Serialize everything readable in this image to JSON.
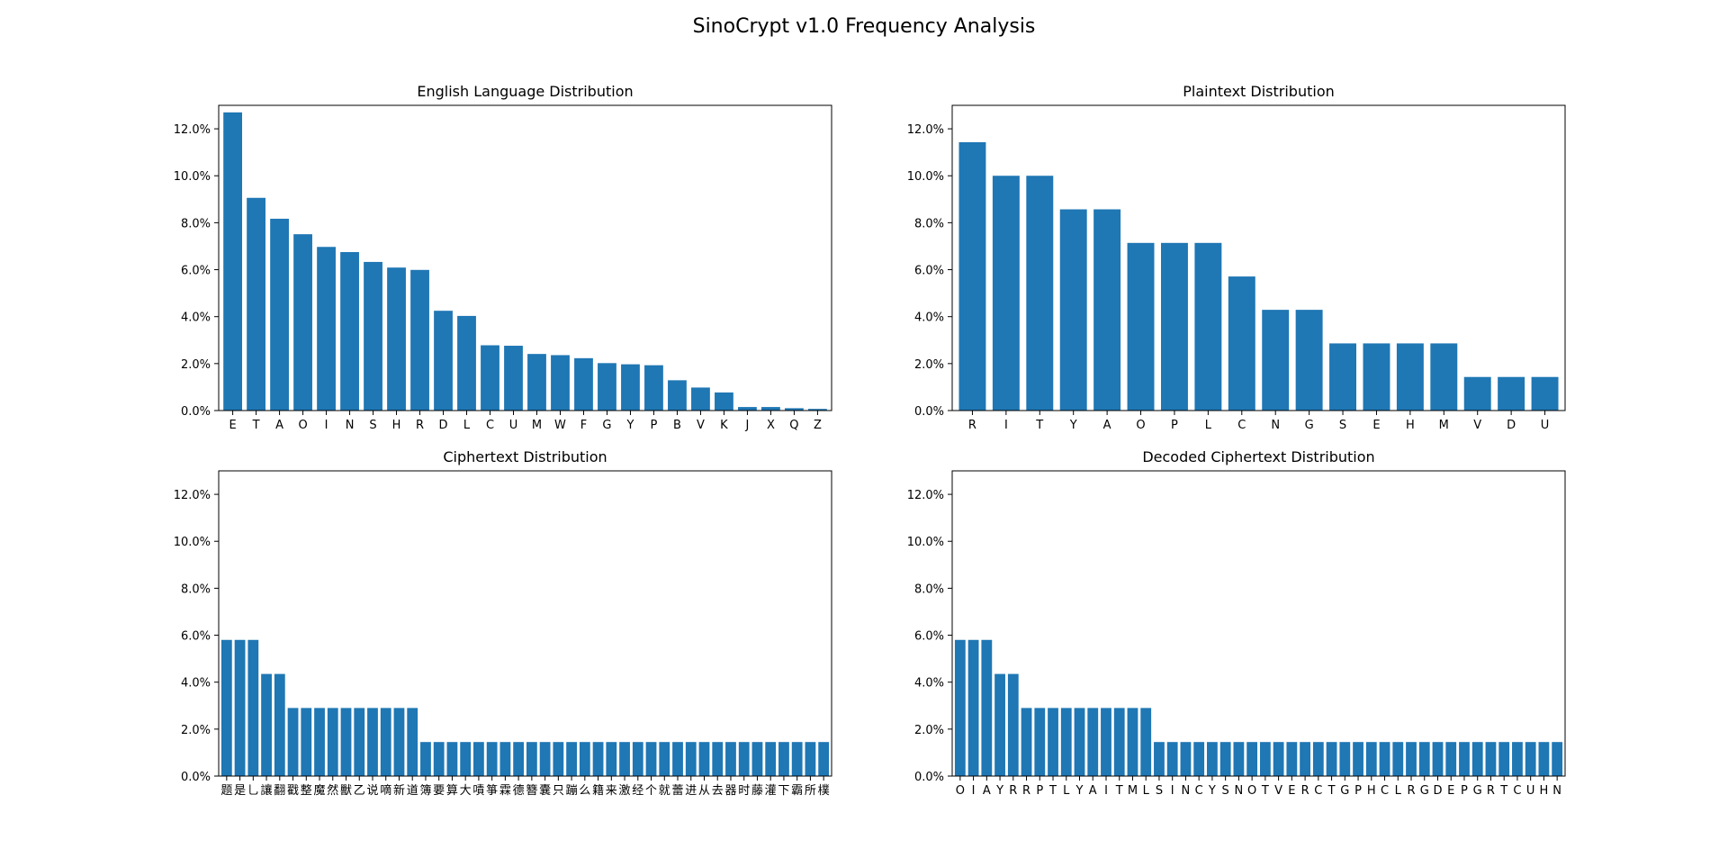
{
  "figure": {
    "title": "SinoCrypt v1.0 Frequency Analysis",
    "bar_color": "#1f77b4"
  },
  "chart_data": [
    {
      "type": "bar",
      "title": "English Language Distribution",
      "xlabel": "",
      "ylabel": "",
      "ylim": [
        0,
        0.13
      ],
      "yticks": [
        "0.0%",
        "2.0%",
        "4.0%",
        "6.0%",
        "8.0%",
        "10.0%",
        "12.0%"
      ],
      "grid": false,
      "categories": [
        "E",
        "T",
        "A",
        "O",
        "I",
        "N",
        "S",
        "H",
        "R",
        "D",
        "L",
        "C",
        "U",
        "M",
        "W",
        "F",
        "G",
        "Y",
        "P",
        "B",
        "V",
        "K",
        "J",
        "X",
        "Q",
        "Z"
      ],
      "values": [
        0.127,
        0.0906,
        0.0817,
        0.0751,
        0.0697,
        0.0675,
        0.0633,
        0.0609,
        0.0599,
        0.0425,
        0.0403,
        0.0278,
        0.0276,
        0.0241,
        0.0236,
        0.0223,
        0.0202,
        0.0197,
        0.0193,
        0.0129,
        0.0098,
        0.0077,
        0.0015,
        0.0015,
        0.001,
        0.0007
      ]
    },
    {
      "type": "bar",
      "title": "Plaintext Distribution",
      "xlabel": "",
      "ylabel": "",
      "ylim": [
        0,
        0.13
      ],
      "yticks": [
        "0.0%",
        "2.0%",
        "4.0%",
        "6.0%",
        "8.0%",
        "10.0%",
        "12.0%"
      ],
      "grid": false,
      "categories": [
        "R",
        "I",
        "T",
        "Y",
        "A",
        "O",
        "P",
        "L",
        "C",
        "N",
        "G",
        "S",
        "E",
        "H",
        "M",
        "V",
        "D",
        "U"
      ],
      "values": [
        0.1143,
        0.1,
        0.1,
        0.0857,
        0.0857,
        0.0714,
        0.0714,
        0.0714,
        0.0571,
        0.0429,
        0.0429,
        0.0286,
        0.0286,
        0.0286,
        0.0286,
        0.0143,
        0.0143,
        0.0143
      ]
    },
    {
      "type": "bar",
      "title": "Ciphertext Distribution",
      "xlabel": "",
      "ylabel": "",
      "ylim": [
        0,
        0.13
      ],
      "yticks": [
        "0.0%",
        "2.0%",
        "4.0%",
        "6.0%",
        "8.0%",
        "10.0%",
        "12.0%"
      ],
      "grid": false,
      "categories": [
        "题",
        "是",
        "乚",
        "讓",
        "翻",
        "戳",
        "整",
        "魔",
        "然",
        "獸",
        "乙",
        "说",
        "嘀",
        "新",
        "道",
        "簿",
        "要",
        "算",
        "大",
        "嘖",
        "箏",
        "霖",
        "德",
        "簪",
        "囊",
        "只",
        "蹦",
        "么",
        "籍",
        "来",
        "激",
        "经",
        "个",
        "就",
        "蕾",
        "进",
        "从",
        "去",
        "器",
        "时",
        "藤",
        "灌",
        "下",
        "霸",
        "所",
        "樸"
      ],
      "values": [
        0.058,
        0.058,
        0.058,
        0.0435,
        0.0435,
        0.029,
        0.029,
        0.029,
        0.029,
        0.029,
        0.029,
        0.029,
        0.029,
        0.029,
        0.029,
        0.0145,
        0.0145,
        0.0145,
        0.0145,
        0.0145,
        0.0145,
        0.0145,
        0.0145,
        0.0145,
        0.0145,
        0.0145,
        0.0145,
        0.0145,
        0.0145,
        0.0145,
        0.0145,
        0.0145,
        0.0145,
        0.0145,
        0.0145,
        0.0145,
        0.0145,
        0.0145,
        0.0145,
        0.0145,
        0.0145,
        0.0145,
        0.0145,
        0.0145,
        0.0145,
        0.0145
      ]
    },
    {
      "type": "bar",
      "title": "Decoded Ciphertext Distribution",
      "xlabel": "",
      "ylabel": "",
      "ylim": [
        0,
        0.13
      ],
      "yticks": [
        "0.0%",
        "2.0%",
        "4.0%",
        "6.0%",
        "8.0%",
        "10.0%",
        "12.0%"
      ],
      "grid": false,
      "categories": [
        "O",
        "I",
        "A",
        "Y",
        "R",
        "R",
        "P",
        "T",
        "L",
        "Y",
        "A",
        "I",
        "T",
        "M",
        "L",
        "S",
        "I",
        "N",
        "C",
        "Y",
        "S",
        "N",
        "O",
        "T",
        "V",
        "E",
        "R",
        "C",
        "T",
        "G",
        "P",
        "H",
        "C",
        "L",
        "R",
        "G",
        "D",
        "E",
        "P",
        "G",
        "R",
        "T",
        "C",
        "U",
        "H",
        "N"
      ],
      "values": [
        0.058,
        0.058,
        0.058,
        0.0435,
        0.0435,
        0.029,
        0.029,
        0.029,
        0.029,
        0.029,
        0.029,
        0.029,
        0.029,
        0.029,
        0.029,
        0.0145,
        0.0145,
        0.0145,
        0.0145,
        0.0145,
        0.0145,
        0.0145,
        0.0145,
        0.0145,
        0.0145,
        0.0145,
        0.0145,
        0.0145,
        0.0145,
        0.0145,
        0.0145,
        0.0145,
        0.0145,
        0.0145,
        0.0145,
        0.0145,
        0.0145,
        0.0145,
        0.0145,
        0.0145,
        0.0145,
        0.0145,
        0.0145,
        0.0145,
        0.0145,
        0.0145
      ]
    }
  ]
}
